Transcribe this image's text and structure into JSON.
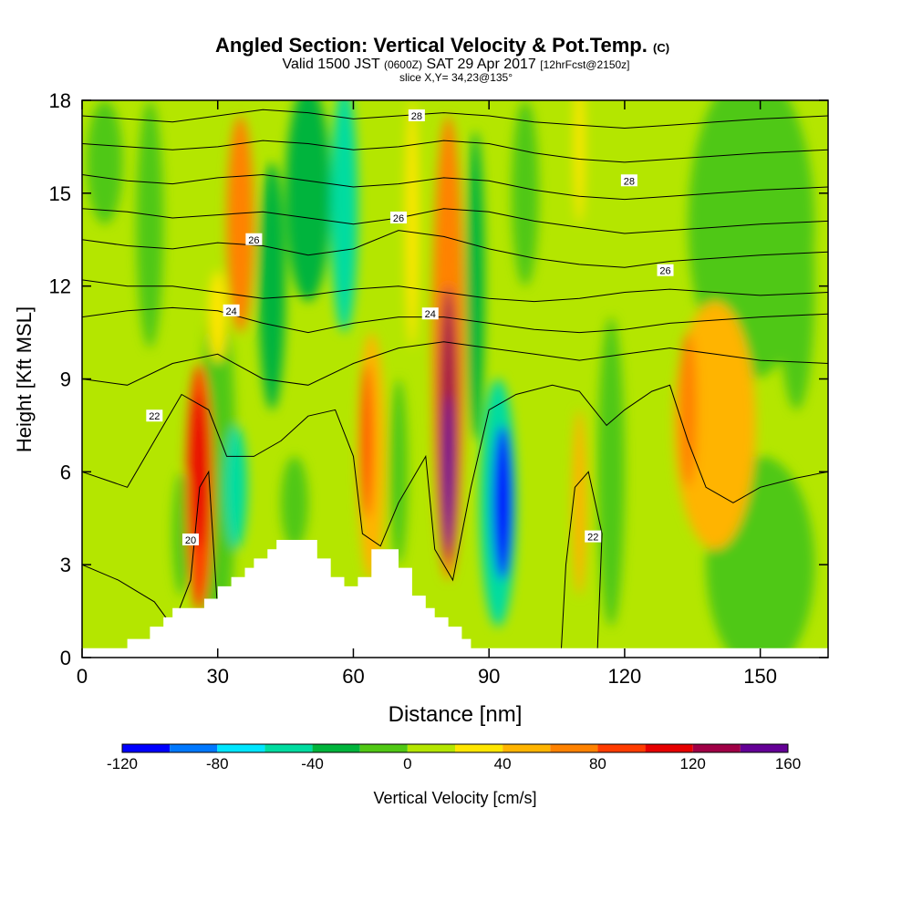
{
  "chart_data": {
    "type": "heatmap",
    "title": "Angled Section: Vertical Velocity & Pot.Temp.",
    "title_units": "(C)",
    "subtitle_main": "Valid 1500 JST",
    "subtitle_utc": "(0600Z)",
    "subtitle_date": "SAT 29 Apr 2017",
    "subtitle_fcst": "[12hrFcst@2150z]",
    "slice_label": "slice X,Y= 34,23@135°",
    "xlabel": "Distance [nm]",
    "ylabel": "Height [Kft MSL]",
    "xlim": [
      0,
      165
    ],
    "ylim": [
      0,
      18
    ],
    "x_ticks": [
      "0",
      "30",
      "60",
      "90",
      "120",
      "150"
    ],
    "y_ticks": [
      "0",
      "3",
      "6",
      "9",
      "12",
      "15",
      "18"
    ],
    "colorbar": {
      "label": "Vertical Velocity [cm/s]",
      "ticks": [
        "-120",
        "-80",
        "-40",
        "0",
        "40",
        "80",
        "120",
        "160"
      ],
      "bounds": [
        -120,
        -100,
        -80,
        -60,
        -40,
        -20,
        0,
        20,
        40,
        60,
        80,
        100,
        120,
        140,
        160
      ],
      "colors": [
        "#0000ff",
        "#0078ff",
        "#00e6ff",
        "#00dca0",
        "#00b43c",
        "#50c814",
        "#b4e600",
        "#ffe600",
        "#ffb400",
        "#ff8200",
        "#ff3c00",
        "#e60000",
        "#a00046",
        "#640096"
      ]
    },
    "background_color": "#b4e600",
    "terrain": [
      [
        0,
        0.3
      ],
      [
        10,
        0.3
      ],
      [
        10,
        0.6
      ],
      [
        15,
        0.6
      ],
      [
        15,
        1.0
      ],
      [
        18,
        1.0
      ],
      [
        18,
        1.3
      ],
      [
        20,
        1.3
      ],
      [
        20,
        1.6
      ],
      [
        27,
        1.6
      ],
      [
        27,
        1.9
      ],
      [
        30,
        1.9
      ],
      [
        30,
        2.3
      ],
      [
        33,
        2.3
      ],
      [
        33,
        2.6
      ],
      [
        36,
        2.6
      ],
      [
        36,
        2.9
      ],
      [
        38,
        2.9
      ],
      [
        38,
        3.2
      ],
      [
        41,
        3.2
      ],
      [
        41,
        3.5
      ],
      [
        43,
        3.5
      ],
      [
        43,
        3.8
      ],
      [
        52,
        3.8
      ],
      [
        52,
        3.2
      ],
      [
        55,
        3.2
      ],
      [
        55,
        2.6
      ],
      [
        58,
        2.6
      ],
      [
        58,
        2.3
      ],
      [
        61,
        2.3
      ],
      [
        61,
        2.6
      ],
      [
        64,
        2.6
      ],
      [
        64,
        3.5
      ],
      [
        70,
        3.5
      ],
      [
        70,
        2.9
      ],
      [
        73,
        2.9
      ],
      [
        73,
        2.0
      ],
      [
        76,
        2.0
      ],
      [
        76,
        1.6
      ],
      [
        78,
        1.6
      ],
      [
        78,
        1.3
      ],
      [
        81,
        1.3
      ],
      [
        81,
        1.0
      ],
      [
        84,
        1.0
      ],
      [
        84,
        0.6
      ],
      [
        86,
        0.6
      ],
      [
        86,
        0.3
      ],
      [
        165,
        0.3
      ]
    ],
    "velocity_cells": [
      {
        "x": 30,
        "y": 6.0,
        "rx": 4,
        "ry": 6.0,
        "v": -10
      },
      {
        "x": 26,
        "y": 5.5,
        "rx": 3,
        "ry": 4.0,
        "v": 80
      },
      {
        "x": 26,
        "y": 6.0,
        "rx": 1.8,
        "ry": 2.5,
        "v": 110
      },
      {
        "x": 34,
        "y": 5.5,
        "rx": 2.5,
        "ry": 2.0,
        "v": -60
      },
      {
        "x": 35,
        "y": 14.0,
        "rx": 3,
        "ry": 3.5,
        "v": 70
      },
      {
        "x": 30,
        "y": 11.0,
        "rx": 2,
        "ry": 1.5,
        "v": 30
      },
      {
        "x": 42,
        "y": 12.0,
        "rx": 3,
        "ry": 4.0,
        "v": -40
      },
      {
        "x": 50,
        "y": 15.0,
        "rx": 5,
        "ry": 3.5,
        "v": -25
      },
      {
        "x": 58,
        "y": 14.5,
        "rx": 3,
        "ry": 4.0,
        "v": -50
      },
      {
        "x": 73,
        "y": 14.0,
        "rx": 1.5,
        "ry": 4.0,
        "v": 30
      },
      {
        "x": 64,
        "y": 6.5,
        "rx": 3,
        "ry": 4.0,
        "v": 50
      },
      {
        "x": 63,
        "y": 7.0,
        "rx": 1.2,
        "ry": 2.5,
        "v": 80
      },
      {
        "x": 70,
        "y": 6.0,
        "rx": 2,
        "ry": 3.0,
        "v": -20
      },
      {
        "x": 81,
        "y": 10.0,
        "rx": 3.5,
        "ry": 7.5,
        "v": 60
      },
      {
        "x": 81,
        "y": 7.5,
        "rx": 2,
        "ry": 4.5,
        "v": 120
      },
      {
        "x": 81,
        "y": 6.0,
        "rx": 1.2,
        "ry": 2.5,
        "v": 155
      },
      {
        "x": 87,
        "y": 12.0,
        "rx": 2,
        "ry": 5.0,
        "v": -25
      },
      {
        "x": 92,
        "y": 5.0,
        "rx": 4,
        "ry": 4.0,
        "v": -60
      },
      {
        "x": 93,
        "y": 5.0,
        "rx": 2.3,
        "ry": 2.5,
        "v": -105
      },
      {
        "x": 110,
        "y": 5.0,
        "rx": 1.5,
        "ry": 3.0,
        "v": 50
      },
      {
        "x": 110,
        "y": 16.5,
        "rx": 1.2,
        "ry": 2.5,
        "v": 30
      },
      {
        "x": 117,
        "y": 6.0,
        "rx": 3,
        "ry": 5.0,
        "v": -15
      },
      {
        "x": 140,
        "y": 7.5,
        "rx": 9,
        "ry": 4.0,
        "v": 40
      },
      {
        "x": 134,
        "y": 8.0,
        "rx": 2,
        "ry": 2.5,
        "v": 70
      },
      {
        "x": 148,
        "y": 14.0,
        "rx": 14,
        "ry": 5.0,
        "v": -15
      },
      {
        "x": 150,
        "y": 3.0,
        "rx": 12,
        "ry": 3.5,
        "v": -15
      },
      {
        "x": 158,
        "y": 12.0,
        "rx": 4,
        "ry": 4.0,
        "v": -10
      },
      {
        "x": 15,
        "y": 14.0,
        "rx": 3,
        "ry": 4.0,
        "v": -10
      },
      {
        "x": 5,
        "y": 16.0,
        "rx": 4,
        "ry": 2.0,
        "v": -10
      },
      {
        "x": 22,
        "y": 4.0,
        "rx": 2,
        "ry": 2.0,
        "v": -15
      },
      {
        "x": 47,
        "y": 5.0,
        "rx": 3,
        "ry": 1.5,
        "v": -20
      },
      {
        "x": 98,
        "y": 15.0,
        "rx": 3,
        "ry": 3.0,
        "v": -20
      }
    ],
    "theta_contours": [
      {
        "label": "20",
        "label_at": [
          24,
          3.8
        ],
        "points": [
          [
            0,
            3.0
          ],
          [
            8,
            2.5
          ],
          [
            16,
            1.8
          ],
          [
            20,
            1.0
          ],
          [
            24,
            2.5
          ],
          [
            26,
            5.5
          ],
          [
            28,
            6.0
          ],
          [
            30,
            1.5
          ]
        ]
      },
      {
        "label": "22",
        "label_at": [
          16,
          7.8
        ],
        "points": [
          [
            0,
            6.0
          ],
          [
            10,
            5.5
          ],
          [
            16,
            7.0
          ],
          [
            22,
            8.5
          ],
          [
            28,
            8.0
          ],
          [
            32,
            6.5
          ],
          [
            38,
            6.5
          ],
          [
            44,
            7.0
          ],
          [
            50,
            7.8
          ],
          [
            56,
            8.0
          ],
          [
            60,
            6.5
          ],
          [
            62,
            4.0
          ],
          [
            66,
            3.6
          ],
          [
            70,
            5.0
          ],
          [
            76,
            6.5
          ],
          [
            78,
            3.5
          ],
          [
            82,
            2.5
          ],
          [
            86,
            5.5
          ],
          [
            90,
            8.0
          ],
          [
            96,
            8.5
          ],
          [
            104,
            8.8
          ],
          [
            110,
            8.6
          ],
          [
            116,
            7.5
          ],
          [
            120,
            8.0
          ],
          [
            126,
            8.6
          ],
          [
            130,
            8.8
          ],
          [
            134,
            7.0
          ],
          [
            138,
            5.5
          ],
          [
            144,
            5.0
          ],
          [
            150,
            5.5
          ],
          [
            158,
            5.8
          ],
          [
            165,
            6.0
          ]
        ]
      },
      {
        "label": "22",
        "label_at": [
          113,
          3.9
        ],
        "points": [
          [
            106,
            0.3
          ],
          [
            107,
            3.0
          ],
          [
            109,
            5.5
          ],
          [
            112,
            6.0
          ],
          [
            115,
            4.0
          ],
          [
            114,
            0.3
          ]
        ]
      },
      {
        "label": "",
        "label_at": null,
        "points": [
          [
            0,
            9.0
          ],
          [
            10,
            8.8
          ],
          [
            20,
            9.5
          ],
          [
            30,
            9.8
          ],
          [
            40,
            9.0
          ],
          [
            50,
            8.8
          ],
          [
            60,
            9.5
          ],
          [
            70,
            10.0
          ],
          [
            80,
            10.2
          ],
          [
            90,
            10.0
          ],
          [
            100,
            9.8
          ],
          [
            110,
            9.6
          ],
          [
            120,
            9.8
          ],
          [
            130,
            10.0
          ],
          [
            140,
            9.8
          ],
          [
            150,
            9.6
          ],
          [
            165,
            9.5
          ]
        ]
      },
      {
        "label": "24",
        "label_at": [
          33,
          11.2
        ],
        "points": [
          [
            0,
            11.0
          ],
          [
            10,
            11.2
          ],
          [
            20,
            11.3
          ],
          [
            30,
            11.2
          ],
          [
            40,
            10.8
          ],
          [
            50,
            10.5
          ],
          [
            60,
            10.8
          ],
          [
            70,
            11.0
          ],
          [
            80,
            11.0
          ],
          [
            90,
            10.8
          ],
          [
            100,
            10.6
          ],
          [
            110,
            10.5
          ],
          [
            120,
            10.6
          ],
          [
            130,
            10.8
          ],
          [
            140,
            10.9
          ],
          [
            150,
            11.0
          ],
          [
            165,
            11.1
          ]
        ]
      },
      {
        "label": "24",
        "label_at": [
          77,
          11.1
        ],
        "points": [
          [
            0,
            12.2
          ],
          [
            10,
            12.0
          ],
          [
            20,
            12.0
          ],
          [
            30,
            11.8
          ],
          [
            40,
            11.6
          ],
          [
            50,
            11.7
          ],
          [
            60,
            11.9
          ],
          [
            70,
            12.0
          ],
          [
            80,
            11.8
          ],
          [
            90,
            11.6
          ],
          [
            100,
            11.5
          ],
          [
            110,
            11.6
          ],
          [
            120,
            11.8
          ],
          [
            130,
            11.9
          ],
          [
            140,
            11.8
          ],
          [
            150,
            11.7
          ],
          [
            165,
            11.8
          ]
        ]
      },
      {
        "label": "26",
        "label_at": [
          38,
          13.5
        ],
        "points": [
          [
            0,
            13.5
          ],
          [
            10,
            13.3
          ],
          [
            20,
            13.2
          ],
          [
            30,
            13.4
          ],
          [
            40,
            13.3
          ],
          [
            50,
            13.0
          ],
          [
            60,
            13.2
          ],
          [
            70,
            13.8
          ],
          [
            80,
            13.6
          ],
          [
            90,
            13.2
          ],
          [
            100,
            12.9
          ],
          [
            110,
            12.7
          ],
          [
            120,
            12.6
          ],
          [
            130,
            12.8
          ],
          [
            140,
            12.9
          ],
          [
            150,
            13.0
          ],
          [
            165,
            13.1
          ]
        ]
      },
      {
        "label": "26",
        "label_at": [
          70,
          14.2
        ],
        "points": [
          [
            0,
            14.5
          ],
          [
            10,
            14.4
          ],
          [
            20,
            14.2
          ],
          [
            30,
            14.3
          ],
          [
            40,
            14.4
          ],
          [
            50,
            14.2
          ],
          [
            60,
            14.0
          ],
          [
            70,
            14.2
          ],
          [
            80,
            14.5
          ],
          [
            90,
            14.4
          ],
          [
            100,
            14.1
          ],
          [
            110,
            13.9
          ],
          [
            120,
            13.7
          ],
          [
            130,
            13.8
          ],
          [
            140,
            13.9
          ],
          [
            150,
            14.0
          ],
          [
            165,
            14.1
          ]
        ]
      },
      {
        "label": "26",
        "label_at": [
          129,
          12.5
        ],
        "points": [
          [
            0,
            15.6
          ],
          [
            10,
            15.4
          ],
          [
            20,
            15.3
          ],
          [
            30,
            15.5
          ],
          [
            40,
            15.6
          ],
          [
            50,
            15.4
          ],
          [
            60,
            15.2
          ],
          [
            70,
            15.3
          ],
          [
            80,
            15.5
          ],
          [
            90,
            15.4
          ],
          [
            100,
            15.1
          ],
          [
            110,
            14.9
          ],
          [
            120,
            14.8
          ],
          [
            130,
            14.9
          ],
          [
            140,
            15.0
          ],
          [
            150,
            15.1
          ],
          [
            165,
            15.2
          ]
        ]
      },
      {
        "label": "28",
        "label_at": [
          121,
          15.4
        ],
        "points": [
          [
            0,
            16.6
          ],
          [
            10,
            16.5
          ],
          [
            20,
            16.4
          ],
          [
            30,
            16.5
          ],
          [
            40,
            16.7
          ],
          [
            50,
            16.6
          ],
          [
            60,
            16.4
          ],
          [
            70,
            16.5
          ],
          [
            80,
            16.7
          ],
          [
            90,
            16.6
          ],
          [
            100,
            16.3
          ],
          [
            110,
            16.1
          ],
          [
            120,
            16.0
          ],
          [
            130,
            16.1
          ],
          [
            140,
            16.2
          ],
          [
            150,
            16.3
          ],
          [
            165,
            16.4
          ]
        ]
      },
      {
        "label": "28",
        "label_at": [
          74,
          17.5
        ],
        "points": [
          [
            0,
            17.5
          ],
          [
            10,
            17.4
          ],
          [
            20,
            17.3
          ],
          [
            30,
            17.5
          ],
          [
            40,
            17.7
          ],
          [
            50,
            17.6
          ],
          [
            60,
            17.4
          ],
          [
            70,
            17.5
          ],
          [
            80,
            17.6
          ],
          [
            90,
            17.5
          ],
          [
            100,
            17.3
          ],
          [
            110,
            17.2
          ],
          [
            120,
            17.1
          ],
          [
            130,
            17.2
          ],
          [
            140,
            17.3
          ],
          [
            150,
            17.4
          ],
          [
            165,
            17.5
          ]
        ]
      }
    ]
  }
}
